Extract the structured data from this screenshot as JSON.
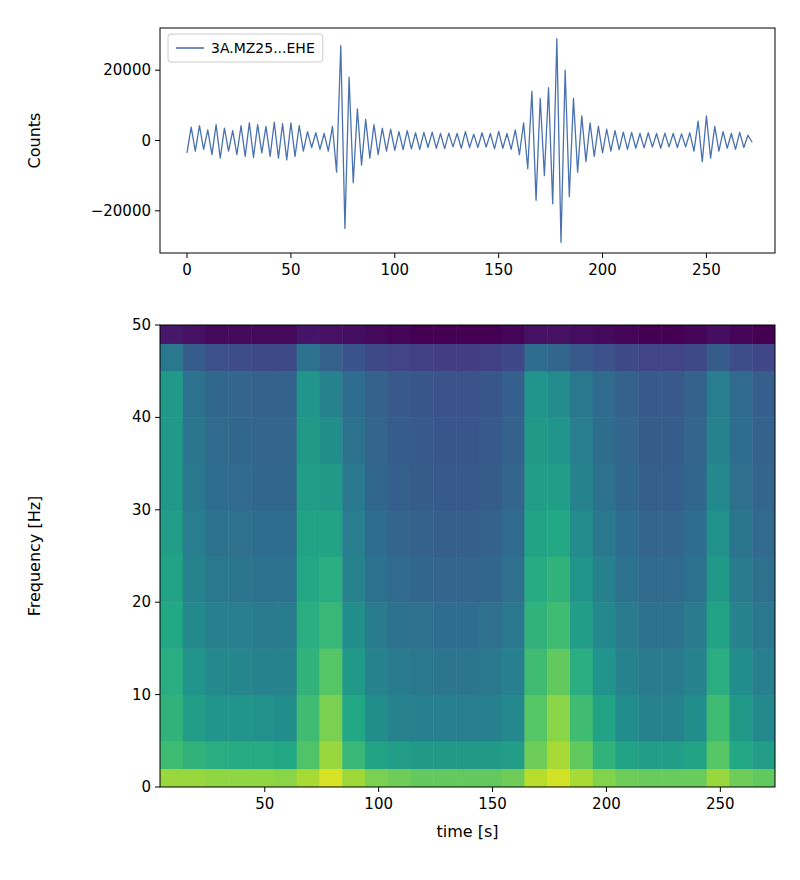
{
  "chart_data": [
    {
      "type": "line",
      "ylabel": "Counts",
      "legend": "upper left",
      "x": [
        0,
        2,
        4,
        6,
        8,
        10,
        12,
        14,
        16,
        18,
        20,
        22,
        24,
        26,
        28,
        30,
        32,
        34,
        36,
        38,
        40,
        42,
        44,
        46,
        48,
        50,
        52,
        54,
        56,
        58,
        60,
        62,
        64,
        66,
        68,
        70,
        72,
        74,
        76,
        78,
        80,
        82,
        84,
        86,
        88,
        90,
        92,
        94,
        96,
        98,
        100,
        102,
        104,
        106,
        108,
        110,
        112,
        114,
        116,
        118,
        120,
        122,
        124,
        126,
        128,
        130,
        132,
        134,
        136,
        138,
        140,
        142,
        144,
        146,
        148,
        150,
        152,
        154,
        156,
        158,
        160,
        162,
        164,
        166,
        168,
        170,
        172,
        174,
        176,
        178,
        180,
        182,
        184,
        186,
        188,
        190,
        192,
        194,
        196,
        198,
        200,
        202,
        204,
        206,
        208,
        210,
        212,
        214,
        216,
        218,
        220,
        222,
        224,
        226,
        228,
        230,
        232,
        234,
        236,
        238,
        240,
        242,
        244,
        246,
        248,
        250,
        252,
        254,
        256,
        258,
        260,
        262,
        264,
        266,
        268,
        270,
        272
      ],
      "series": [
        {
          "name": "3A.MZ25...EHE",
          "color": "#4a72b0",
          "values": [
            -3500,
            3800,
            -3000,
            4200,
            -2500,
            3000,
            -4000,
            4500,
            -5000,
            3500,
            -3000,
            2800,
            -4000,
            4200,
            -4500,
            5000,
            -4800,
            4500,
            -3500,
            4000,
            -4500,
            5200,
            -5000,
            4800,
            -5500,
            5000,
            -4500,
            4200,
            -3000,
            2500,
            -2000,
            2200,
            -2500,
            2000,
            -3000,
            4000,
            -9000,
            27000,
            -25000,
            18000,
            -12000,
            9000,
            -7000,
            6000,
            -5000,
            4500,
            -4000,
            3500,
            -3000,
            3200,
            -2800,
            2500,
            -2600,
            2800,
            -2400,
            2200,
            -2500,
            2300,
            -2000,
            2400,
            -2200,
            2000,
            -2300,
            2100,
            -1800,
            2000,
            -2200,
            2500,
            -2000,
            1800,
            -2000,
            2200,
            -1900,
            2000,
            -2400,
            2600,
            -2200,
            2000,
            -2500,
            3000,
            -4000,
            5000,
            -8000,
            14000,
            -17000,
            12000,
            -10000,
            15000,
            -18000,
            29000,
            -29000,
            20000,
            -16000,
            12000,
            -9000,
            7000,
            -6000,
            5000,
            -4500,
            4000,
            -3500,
            3200,
            -3000,
            2800,
            -2600,
            2400,
            -2500,
            2300,
            -2200,
            2000,
            -2100,
            2200,
            -1900,
            2000,
            -2200,
            2100,
            -1800,
            2000,
            -2000,
            1900,
            -1800,
            2200,
            -3000,
            5500,
            -6000,
            7000,
            -5000,
            4000,
            -3000,
            2500,
            -2200,
            2000,
            -2500,
            2300,
            -2000,
            1500,
            -500
          ]
        }
      ],
      "xlim": [
        -13,
        283
      ],
      "ylim": [
        -32000,
        32000
      ],
      "xticks": [
        0,
        50,
        100,
        150,
        200,
        250
      ],
      "yticks": [
        {
          "value": -20000,
          "label": "−20000"
        },
        0,
        20000
      ]
    },
    {
      "type": "heatmap",
      "xlabel": "time [s]",
      "ylabel": "Frequency [Hz]",
      "color": "viridis",
      "x_edges": [
        4,
        14,
        24,
        34,
        44,
        54,
        64,
        74,
        84,
        94,
        104,
        114,
        124,
        134,
        144,
        154,
        164,
        174,
        184,
        194,
        204,
        214,
        224,
        234,
        244,
        254,
        264,
        274
      ],
      "y_edges": [
        0,
        2,
        5,
        10,
        15,
        20,
        25,
        30,
        35,
        40,
        45,
        48,
        50
      ],
      "zlim": [
        1,
        10
      ],
      "cells": [
        [
          8.6,
          8.6,
          8.5,
          8.5,
          8.5,
          8.4,
          8.8,
          9.5,
          8.7,
          8.2,
          8.0,
          7.8,
          7.8,
          7.8,
          7.8,
          8.0,
          9.0,
          9.4,
          8.8,
          8.3,
          8.0,
          7.9,
          7.9,
          7.9,
          8.6,
          8.0,
          7.8
        ],
        [
          7.2,
          6.8,
          6.6,
          6.5,
          6.5,
          6.4,
          7.5,
          8.6,
          7.0,
          6.2,
          6.0,
          5.8,
          5.8,
          5.8,
          5.8,
          6.0,
          8.0,
          8.8,
          7.8,
          6.8,
          6.2,
          6.0,
          6.0,
          6.2,
          7.6,
          6.4,
          6.0
        ],
        [
          6.8,
          6.0,
          5.6,
          5.6,
          5.5,
          5.4,
          7.2,
          8.2,
          6.4,
          5.4,
          5.0,
          4.9,
          4.9,
          4.8,
          4.9,
          5.2,
          7.6,
          8.4,
          7.2,
          6.2,
          5.4,
          5.0,
          5.0,
          5.4,
          7.2,
          5.8,
          5.2
        ],
        [
          6.6,
          5.6,
          5.2,
          5.1,
          5.0,
          5.0,
          6.8,
          7.6,
          5.8,
          5.0,
          4.7,
          4.6,
          4.5,
          4.5,
          4.6,
          4.9,
          7.2,
          7.8,
          6.6,
          5.6,
          5.0,
          4.7,
          4.7,
          5.0,
          6.6,
          5.4,
          4.9
        ],
        [
          6.4,
          5.2,
          4.9,
          4.8,
          4.7,
          4.7,
          6.6,
          7.0,
          5.4,
          4.7,
          4.4,
          4.3,
          4.2,
          4.2,
          4.3,
          4.6,
          6.8,
          7.2,
          6.0,
          5.2,
          4.7,
          4.4,
          4.4,
          4.7,
          6.2,
          5.0,
          4.6
        ],
        [
          6.2,
          5.0,
          4.6,
          4.5,
          4.4,
          4.4,
          6.4,
          6.6,
          5.0,
          4.4,
          4.1,
          4.0,
          3.9,
          3.9,
          4.0,
          4.3,
          6.5,
          6.8,
          5.6,
          4.9,
          4.4,
          4.1,
          4.1,
          4.4,
          5.8,
          4.7,
          4.3
        ],
        [
          6.0,
          4.8,
          4.4,
          4.3,
          4.2,
          4.2,
          6.2,
          6.2,
          4.8,
          4.2,
          3.9,
          3.8,
          3.7,
          3.7,
          3.8,
          4.1,
          6.2,
          6.4,
          5.3,
          4.6,
          4.2,
          3.9,
          3.9,
          4.2,
          5.5,
          4.5,
          4.1
        ],
        [
          5.8,
          4.6,
          4.2,
          4.1,
          4.0,
          4.0,
          6.0,
          5.8,
          4.6,
          4.0,
          3.7,
          3.6,
          3.5,
          3.5,
          3.6,
          3.9,
          6.0,
          6.0,
          5.0,
          4.4,
          4.0,
          3.7,
          3.7,
          4.0,
          5.2,
          4.3,
          3.9
        ],
        [
          5.8,
          4.5,
          4.1,
          4.0,
          3.9,
          3.9,
          5.8,
          5.4,
          4.4,
          3.9,
          3.6,
          3.5,
          3.4,
          3.4,
          3.5,
          3.8,
          5.8,
          5.6,
          4.8,
          4.2,
          3.9,
          3.6,
          3.6,
          3.9,
          5.0,
          4.2,
          3.8
        ],
        [
          5.8,
          4.4,
          4.0,
          3.9,
          3.8,
          3.8,
          5.6,
          5.0,
          4.2,
          3.8,
          3.5,
          3.4,
          3.3,
          3.3,
          3.4,
          3.7,
          5.6,
          5.3,
          4.6,
          4.1,
          3.8,
          3.5,
          3.5,
          3.8,
          4.8,
          4.1,
          3.7
        ],
        [
          4.6,
          3.6,
          3.2,
          3.1,
          3.0,
          3.0,
          4.4,
          3.8,
          3.3,
          3.0,
          2.8,
          2.7,
          2.6,
          2.6,
          2.7,
          2.9,
          4.2,
          4.0,
          3.5,
          3.2,
          3.0,
          2.8,
          2.8,
          3.0,
          3.6,
          3.1,
          2.9
        ],
        [
          1.6,
          1.4,
          1.2,
          1.2,
          1.2,
          1.2,
          1.5,
          1.4,
          1.3,
          1.2,
          1.1,
          1.0,
          1.0,
          1.0,
          1.0,
          1.1,
          1.4,
          1.4,
          1.3,
          1.2,
          1.1,
          1.0,
          1.0,
          1.1,
          1.3,
          1.1,
          1.0
        ]
      ],
      "xlim": [
        4,
        274
      ],
      "ylim": [
        0,
        50
      ],
      "xticks": [
        50,
        100,
        150,
        200,
        250
      ],
      "yticks": [
        0,
        10,
        20,
        30,
        40,
        50
      ]
    }
  ]
}
